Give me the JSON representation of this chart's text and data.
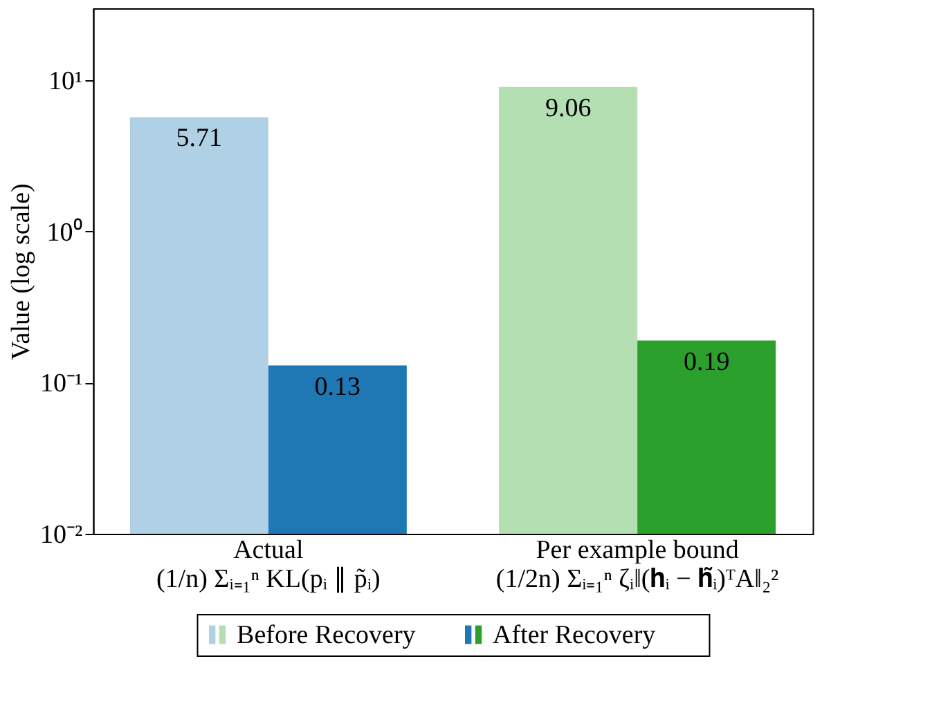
{
  "chart_data": {
    "type": "bar",
    "ylabel": "Value (log scale)",
    "log": true,
    "categories": [
      "Actual\n(1/n) Σᵢ₌₁ⁿ KL(pᵢ ∥ p̃ᵢ)",
      "Per example bound\n(1/2n) Σᵢ₌₁ⁿ ζᵢ‖(𝐡ᵢ − 𝐡̃ᵢ)ᵀA‖₂²"
    ],
    "series": [
      {
        "name": "Before Recovery",
        "colors": [
          "#b0d0e6",
          "#b3dfb3"
        ],
        "values": [
          5.71,
          9.06
        ]
      },
      {
        "name": "After Recovery",
        "colors": [
          "#1f77b4",
          "#2ca02c"
        ],
        "values": [
          0.13,
          0.19
        ]
      }
    ],
    "ylim": [
      0.01,
      30
    ],
    "yticks": [
      {
        "value": 0.01,
        "label": "10⁻²"
      },
      {
        "value": 0.1,
        "label": "10⁻¹"
      },
      {
        "value": 1,
        "label": "10⁰"
      },
      {
        "value": 10,
        "label": "10¹"
      }
    ],
    "data_labels": true,
    "grid": false,
    "legend": "bottom"
  }
}
